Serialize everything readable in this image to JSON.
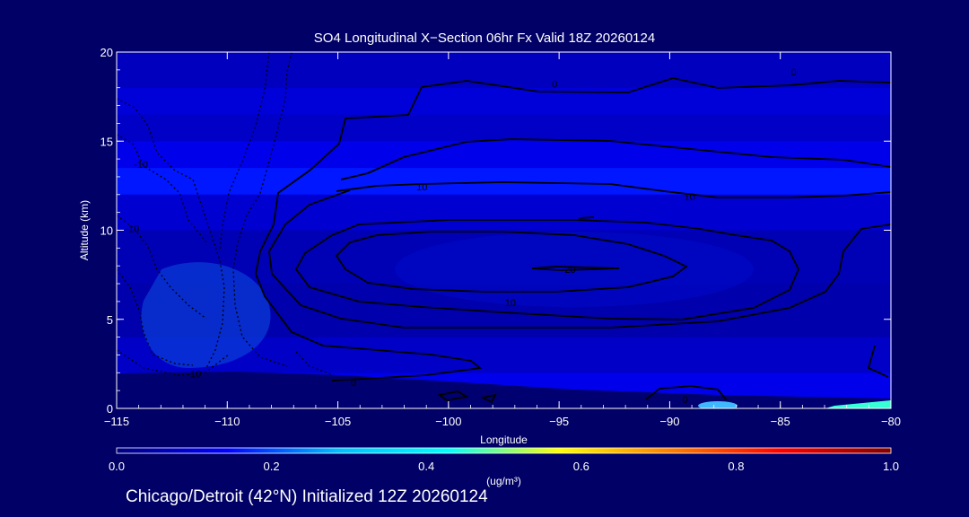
{
  "chart_data": {
    "type": "heatmap",
    "title": "SO4 Longitudinal X−Section 06hr  Fx Valid 18Z 20260124",
    "xlabel": "Longitude",
    "ylabel": "Altitude (km)",
    "xlim": [
      -115,
      -80
    ],
    "ylim": [
      0,
      20
    ],
    "x_ticks": [
      "−115",
      "−110",
      "−105",
      "−100",
      "−95",
      "−90",
      "−85",
      "−80"
    ],
    "y_ticks": [
      "0",
      "5",
      "10",
      "15",
      "20"
    ],
    "colorbar": {
      "label": "(ug/m³)",
      "range": [
        0.0,
        1.0
      ],
      "ticks": [
        "0.0",
        "0.2",
        "0.4",
        "0.6",
        "0.8",
        "1.0"
      ],
      "colors": [
        "#000080",
        "#0000ff",
        "#00bfff",
        "#00ffff",
        "#ffff00",
        "#ff7f00",
        "#ff0000",
        "#800000"
      ]
    },
    "bands": [
      {
        "alt": [
          0.0,
          2.0
        ],
        "value": 0.12
      },
      {
        "alt": [
          2.0,
          4.0
        ],
        "value": 0.08
      },
      {
        "alt": [
          4.0,
          7.0
        ],
        "value": 0.05
      },
      {
        "alt": [
          7.0,
          10.0
        ],
        "value": 0.06
      },
      {
        "alt": [
          10.0,
          12.0
        ],
        "value": 0.09
      },
      {
        "alt": [
          12.0,
          13.5
        ],
        "value": 0.16
      },
      {
        "alt": [
          13.5,
          15.0
        ],
        "value": 0.12
      },
      {
        "alt": [
          15.0,
          16.5
        ],
        "value": 0.08
      },
      {
        "alt": [
          16.5,
          18.0
        ],
        "value": 0.1
      },
      {
        "alt": [
          18.0,
          20.0
        ],
        "value": 0.07
      }
    ],
    "contour_labels": [
      {
        "text": "0",
        "lon": -95.2,
        "alt": 18.2
      },
      {
        "text": "0",
        "lon": -84.4,
        "alt": 18.9
      },
      {
        "text": "10",
        "lon": -101.2,
        "alt": 12.45
      },
      {
        "text": "10",
        "lon": -89.1,
        "alt": 11.9
      },
      {
        "text": "10",
        "lon": -97.2,
        "alt": 5.95
      },
      {
        "text": "20",
        "lon": -94.5,
        "alt": 7.8
      },
      {
        "text": "-10",
        "lon": -113.9,
        "alt": 13.7
      },
      {
        "text": "-10",
        "lon": -114.3,
        "alt": 10.1
      },
      {
        "text": "-10",
        "lon": -111.5,
        "alt": 1.95
      },
      {
        "text": "0",
        "lon": -104.3,
        "alt": 1.45
      },
      {
        "text": "0",
        "lon": -89.3,
        "alt": 0.5
      }
    ]
  },
  "footer": "Chicago/Detroit (42°N) Initialized 12Z 20260124"
}
